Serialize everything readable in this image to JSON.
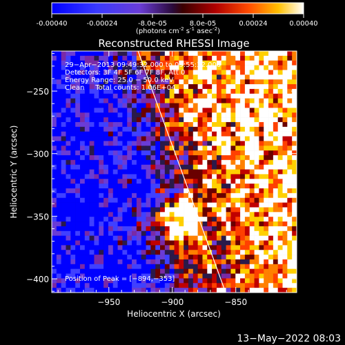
{
  "colorbar": {
    "ticks": [
      "-0.00040",
      "-0.00024",
      "-8.0e-05",
      "8.0e-05",
      "0.00024",
      "0.00040"
    ],
    "tick_values": [
      -0.0004,
      -0.00024,
      -8e-05,
      8e-05,
      0.00024,
      0.0004
    ],
    "range": [
      -0.0004,
      0.0004
    ],
    "unit_main": "(photons cm",
    "unit_sup1": "-2",
    "unit_mid": " s",
    "unit_sup2": "-1",
    "unit_end": " asec",
    "unit_sup3": "-2",
    "unit_close": ")"
  },
  "chart_data": {
    "type": "heatmap",
    "title": "Reconstructed RHESSI Image",
    "xlabel": "Heliocentric X (arcsec)",
    "ylabel": "Heliocentric Y (arcsec)",
    "xlim": [
      -995,
      -802
    ],
    "ylim": [
      -411,
      -218
    ],
    "xticks": [
      -950,
      -900,
      -850
    ],
    "xtick_labels": [
      "−950",
      "−900",
      "−850"
    ],
    "yticks": [
      -250,
      -300,
      -350,
      -400
    ],
    "ytick_labels": [
      "−250",
      "−300",
      "−350",
      "−400"
    ],
    "annotations": [
      "29−Apr−2013 09:49:32.000 to 09:55:32.000",
      "Detectors: 3F 4F 5F 6F 7F 8F, Att 0",
      "Energy Range: 25.0 − 50.0 keV",
      "Clean     Total counts: 1.06E+04"
    ],
    "peak_label": "Position of Peak = [−894,−353]",
    "peak": [
      -894,
      -353
    ],
    "limb_line": [
      [
        -927,
        -218
      ],
      [
        -858,
        -411
      ]
    ],
    "colormap": [
      "#0000ff",
      "#4040ff",
      "#6a3cd6",
      "#7a2aa6",
      "#2a1a4a",
      "#6a0000",
      "#c00000",
      "#ff4000",
      "#ff8000",
      "#ffd000",
      "#ffffff"
    ]
  },
  "footer": {
    "date": "13−May−2022 08:03"
  }
}
